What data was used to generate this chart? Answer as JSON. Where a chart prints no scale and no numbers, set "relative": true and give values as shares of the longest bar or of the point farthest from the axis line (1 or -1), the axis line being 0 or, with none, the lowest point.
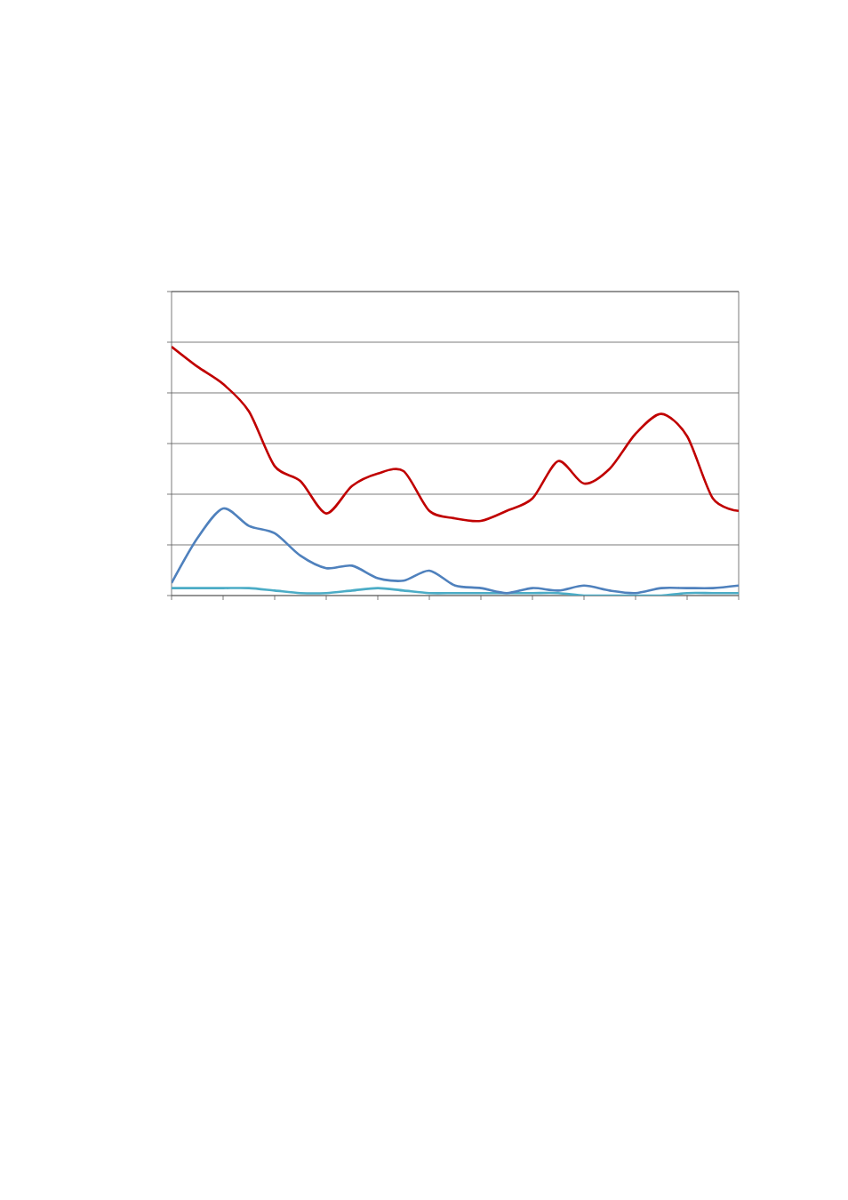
{
  "chart_data": {
    "type": "line",
    "relative": true,
    "grid": "y",
    "marker": "none",
    "line_style": "solid",
    "categories": [
      null,
      null,
      null,
      null,
      null,
      null,
      null,
      null,
      null,
      null,
      null,
      null,
      null,
      null,
      null,
      null,
      null,
      null,
      null,
      null,
      null,
      null,
      null
    ],
    "series": [
      {
        "color": "#c00000",
        "values": [
          1.0,
          0.92,
          0.85,
          0.74,
          0.52,
          0.46,
          0.33,
          0.44,
          0.49,
          0.5,
          0.34,
          0.31,
          0.3,
          0.34,
          0.39,
          0.54,
          0.45,
          0.51,
          0.65,
          0.73,
          0.64,
          0.39,
          0.34
        ]
      },
      {
        "color": "#4bacc6",
        "values": [
          0.03,
          0.03,
          0.03,
          0.03,
          0.02,
          0.01,
          0.01,
          0.02,
          0.03,
          0.02,
          0.01,
          0.01,
          0.01,
          0.01,
          0.01,
          0.01,
          0,
          0,
          0,
          0,
          0.01,
          0.01,
          0.01
        ]
      },
      {
        "color": "#4f81bd",
        "values": [
          0.05,
          0.23,
          0.35,
          0.28,
          0.25,
          0.16,
          0.11,
          0.12,
          0.07,
          0.06,
          0.1,
          0.04,
          0.03,
          0.01,
          0.03,
          0.02,
          0.04,
          0.02,
          0.01,
          0.03,
          0.03,
          0.03,
          0.04
        ]
      }
    ]
  }
}
